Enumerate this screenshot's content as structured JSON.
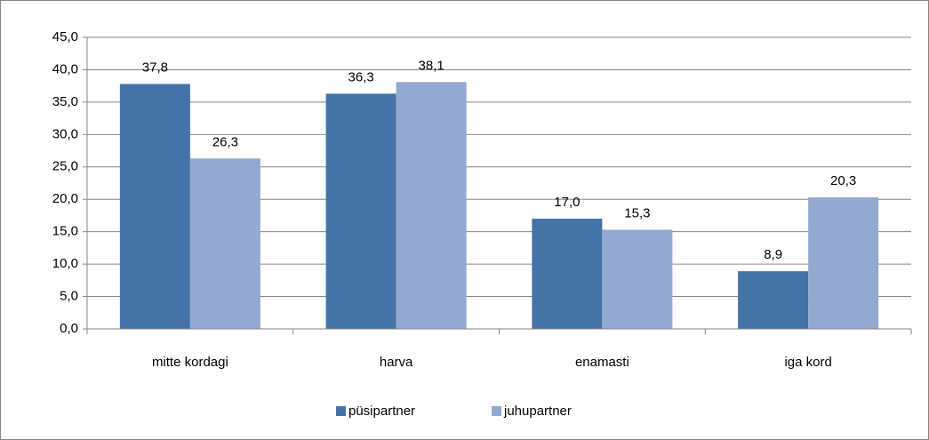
{
  "chart_data": {
    "type": "bar",
    "categories": [
      "mitte kordagi",
      "harva",
      "enamasti",
      "iga kord"
    ],
    "series": [
      {
        "name": "püsipartner",
        "color": "#4572a7",
        "values": [
          37.8,
          36.3,
          17.0,
          8.9
        ],
        "value_labels": [
          "37,8",
          "36,3",
          "17,0",
          "8,9"
        ]
      },
      {
        "name": "juhupartner",
        "color": "#93a9cf",
        "values": [
          26.3,
          38.1,
          15.3,
          20.3
        ],
        "value_labels": [
          "26,3",
          "38,1",
          "15,3",
          "20,3"
        ]
      }
    ],
    "ylim": [
      0,
      45
    ],
    "yticks": [
      {
        "value": 0,
        "label": "0,0"
      },
      {
        "value": 5,
        "label": "5,0"
      },
      {
        "value": 10,
        "label": "10,0"
      },
      {
        "value": 15,
        "label": "15,0"
      },
      {
        "value": 20,
        "label": "20,0"
      },
      {
        "value": 25,
        "label": "25,0"
      },
      {
        "value": 30,
        "label": "30,0"
      },
      {
        "value": 35,
        "label": "35,0"
      },
      {
        "value": 40,
        "label": "40,0"
      },
      {
        "value": 45,
        "label": "45,0"
      }
    ],
    "grid": true,
    "legend": "bottom"
  }
}
